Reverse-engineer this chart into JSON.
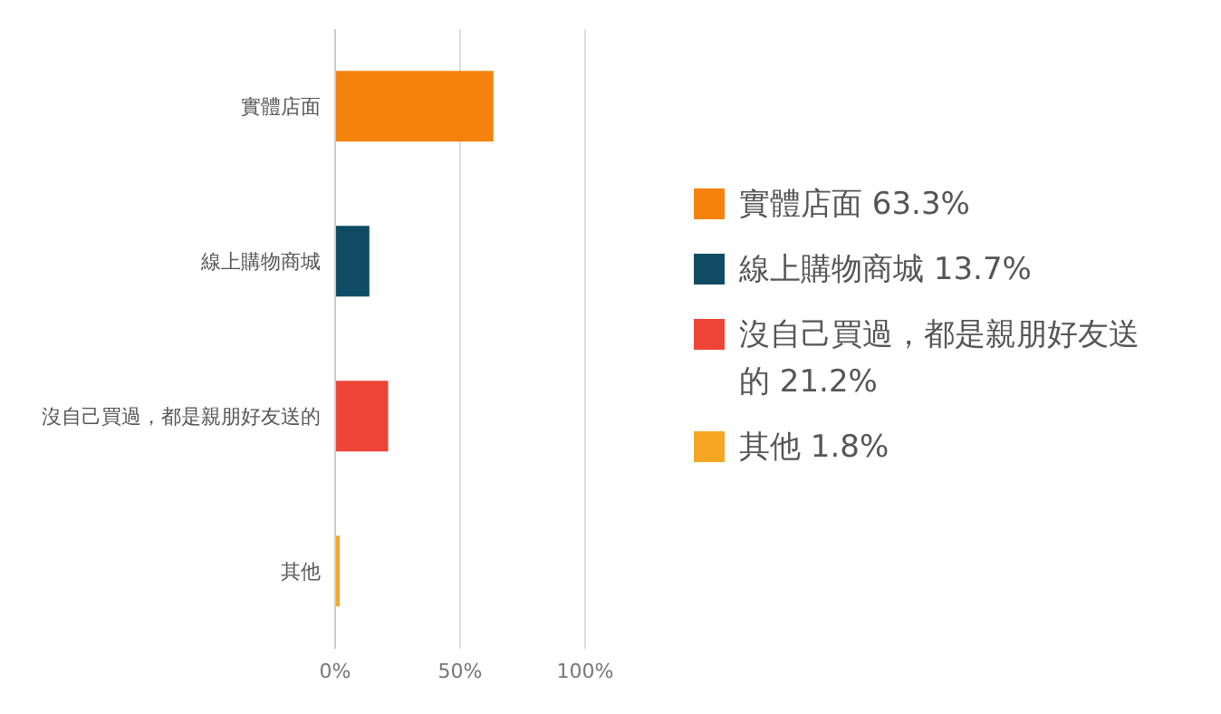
{
  "chart_data": {
    "type": "bar",
    "orientation": "horizontal",
    "categories": [
      "實體店面",
      "線上購物商城",
      "沒自己買過，都是親朋好友送的",
      "其他"
    ],
    "values": [
      63.3,
      13.7,
      21.2,
      1.8
    ],
    "colors": [
      "#f5820d",
      "#0f4c64",
      "#ef4438",
      "#f5a623"
    ],
    "xlim": [
      0,
      100
    ],
    "xticks": [
      {
        "value": 0,
        "label": "0%"
      },
      {
        "value": 50,
        "label": "50%"
      },
      {
        "value": 100,
        "label": "100%"
      }
    ],
    "grid": "x",
    "annotations": [
      "實體店面 63.3%",
      "線上購物商城 13.7%",
      "沒自己買過，都是親朋好友送的 21.2%",
      "其他 1.8%"
    ]
  }
}
